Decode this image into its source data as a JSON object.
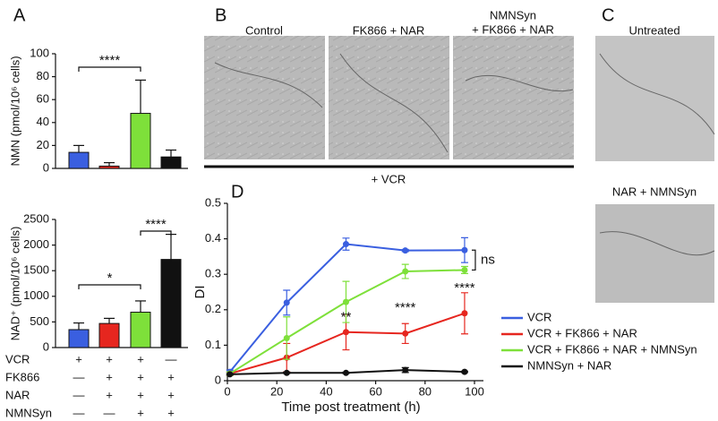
{
  "figure": {
    "panel_labels": [
      "A",
      "B",
      "C",
      "D"
    ],
    "b_captions": [
      "Control",
      "FK866 + NAR",
      "NMNSyn",
      "+ FK866 + NAR"
    ],
    "b_footer": "+ VCR",
    "c_captions": [
      "Untreated",
      "NAR + NMNSyn"
    ]
  },
  "chart_data": [
    {
      "type": "bar",
      "ylabel": "NMN (pmol/10⁶ cells)",
      "values": [
        14,
        2,
        48,
        10
      ],
      "errors": [
        6,
        3,
        29,
        6
      ],
      "colors": [
        "#3a5fe0",
        "#e6261f",
        "#7ee03a",
        "#111111"
      ],
      "ylim": [
        0,
        100
      ],
      "yticks": [
        0,
        20,
        40,
        60,
        80,
        100
      ],
      "annotations": [
        "****"
      ]
    },
    {
      "type": "bar",
      "ylabel": "NAD⁺ (pmol/10⁶ cells)",
      "values": [
        350,
        470,
        690,
        1720
      ],
      "errors": [
        130,
        100,
        220,
        490
      ],
      "colors": [
        "#3a5fe0",
        "#e6261f",
        "#7ee03a",
        "#111111"
      ],
      "ylim": [
        0,
        2500
      ],
      "yticks": [
        0,
        500,
        1000,
        1500,
        2000,
        2500
      ],
      "annotations": [
        "*",
        "****"
      ],
      "treatment_table": [
        {
          "label": "VCR",
          "marks": [
            "+",
            "+",
            "+",
            "—"
          ]
        },
        {
          "label": "FK866",
          "marks": [
            "—",
            "+",
            "+",
            "+"
          ]
        },
        {
          "label": "NAR",
          "marks": [
            "—",
            "+",
            "+",
            "+"
          ]
        },
        {
          "label": "NMNSyn",
          "marks": [
            "—",
            "—",
            "+",
            "+"
          ]
        }
      ]
    },
    {
      "type": "line",
      "xlabel": "Time post treatment (h)",
      "ylabel": "DI",
      "x": [
        1,
        24,
        48,
        72,
        96
      ],
      "xlim": [
        0,
        100
      ],
      "xticks": [
        0,
        20,
        40,
        60,
        80,
        100
      ],
      "ylim": [
        0,
        0.5
      ],
      "yticks": [
        0,
        0.1,
        0.2,
        0.3,
        0.4,
        0.5
      ],
      "series": [
        {
          "name": "VCR",
          "color": "#3a5fe0",
          "values": [
            0.025,
            0.22,
            0.385,
            0.367,
            0.368
          ],
          "errors": [
            0.005,
            0.035,
            0.017,
            0.003,
            0.035
          ]
        },
        {
          "name": "VCR + FK866 + NAR",
          "color": "#e6261f",
          "values": [
            0.02,
            0.065,
            0.137,
            0.133,
            0.19
          ],
          "errors": [
            0.005,
            0.04,
            0.05,
            0.028,
            0.058
          ]
        },
        {
          "name": "VCR + FK866 + NAR + NMNSyn",
          "color": "#7ee03a",
          "values": [
            0.02,
            0.12,
            0.222,
            0.308,
            0.312
          ],
          "errors": [
            0.005,
            0.06,
            0.058,
            0.02,
            0.01
          ]
        },
        {
          "name": "NMNSyn + NAR",
          "color": "#111111",
          "values": [
            0.018,
            0.022,
            0.022,
            0.03,
            0.025
          ],
          "errors": [
            0.002,
            0.002,
            0.002,
            0.007,
            0.002
          ]
        }
      ],
      "annotations": [
        "ns",
        "**",
        "****",
        "****"
      ]
    }
  ]
}
